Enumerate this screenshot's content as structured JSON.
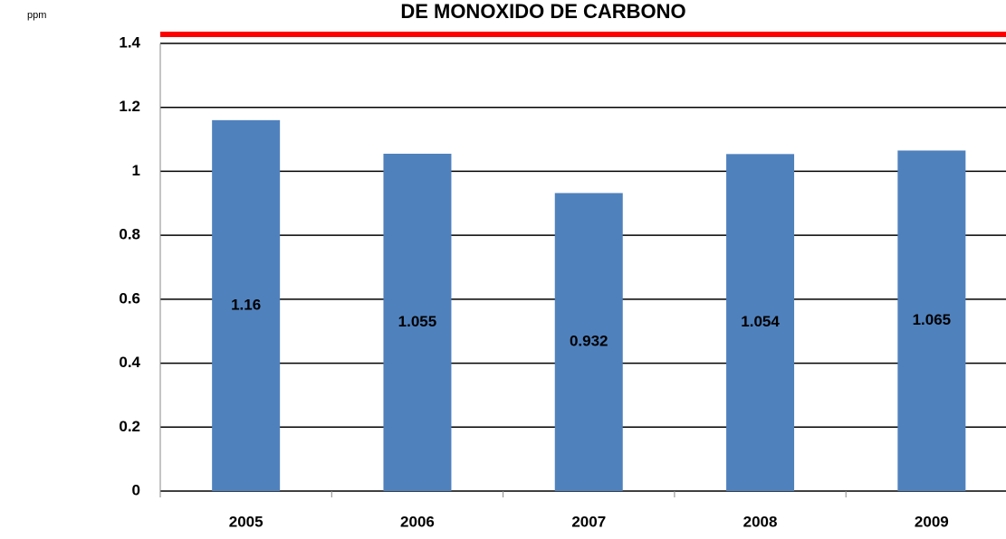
{
  "chart_data": {
    "type": "bar",
    "title": "DE MONOXIDO DE CARBONO",
    "y_label": "ppm",
    "categories": [
      "2005",
      "2006",
      "2007",
      "2008",
      "2009"
    ],
    "values": [
      1.16,
      1.055,
      0.932,
      1.054,
      1.065
    ],
    "color": "#4f81bd",
    "ylim": [
      0,
      1.4
    ],
    "yticks": [
      0,
      0.2,
      0.4,
      0.6,
      0.8,
      1,
      1.2,
      1.4
    ],
    "grid": true
  }
}
